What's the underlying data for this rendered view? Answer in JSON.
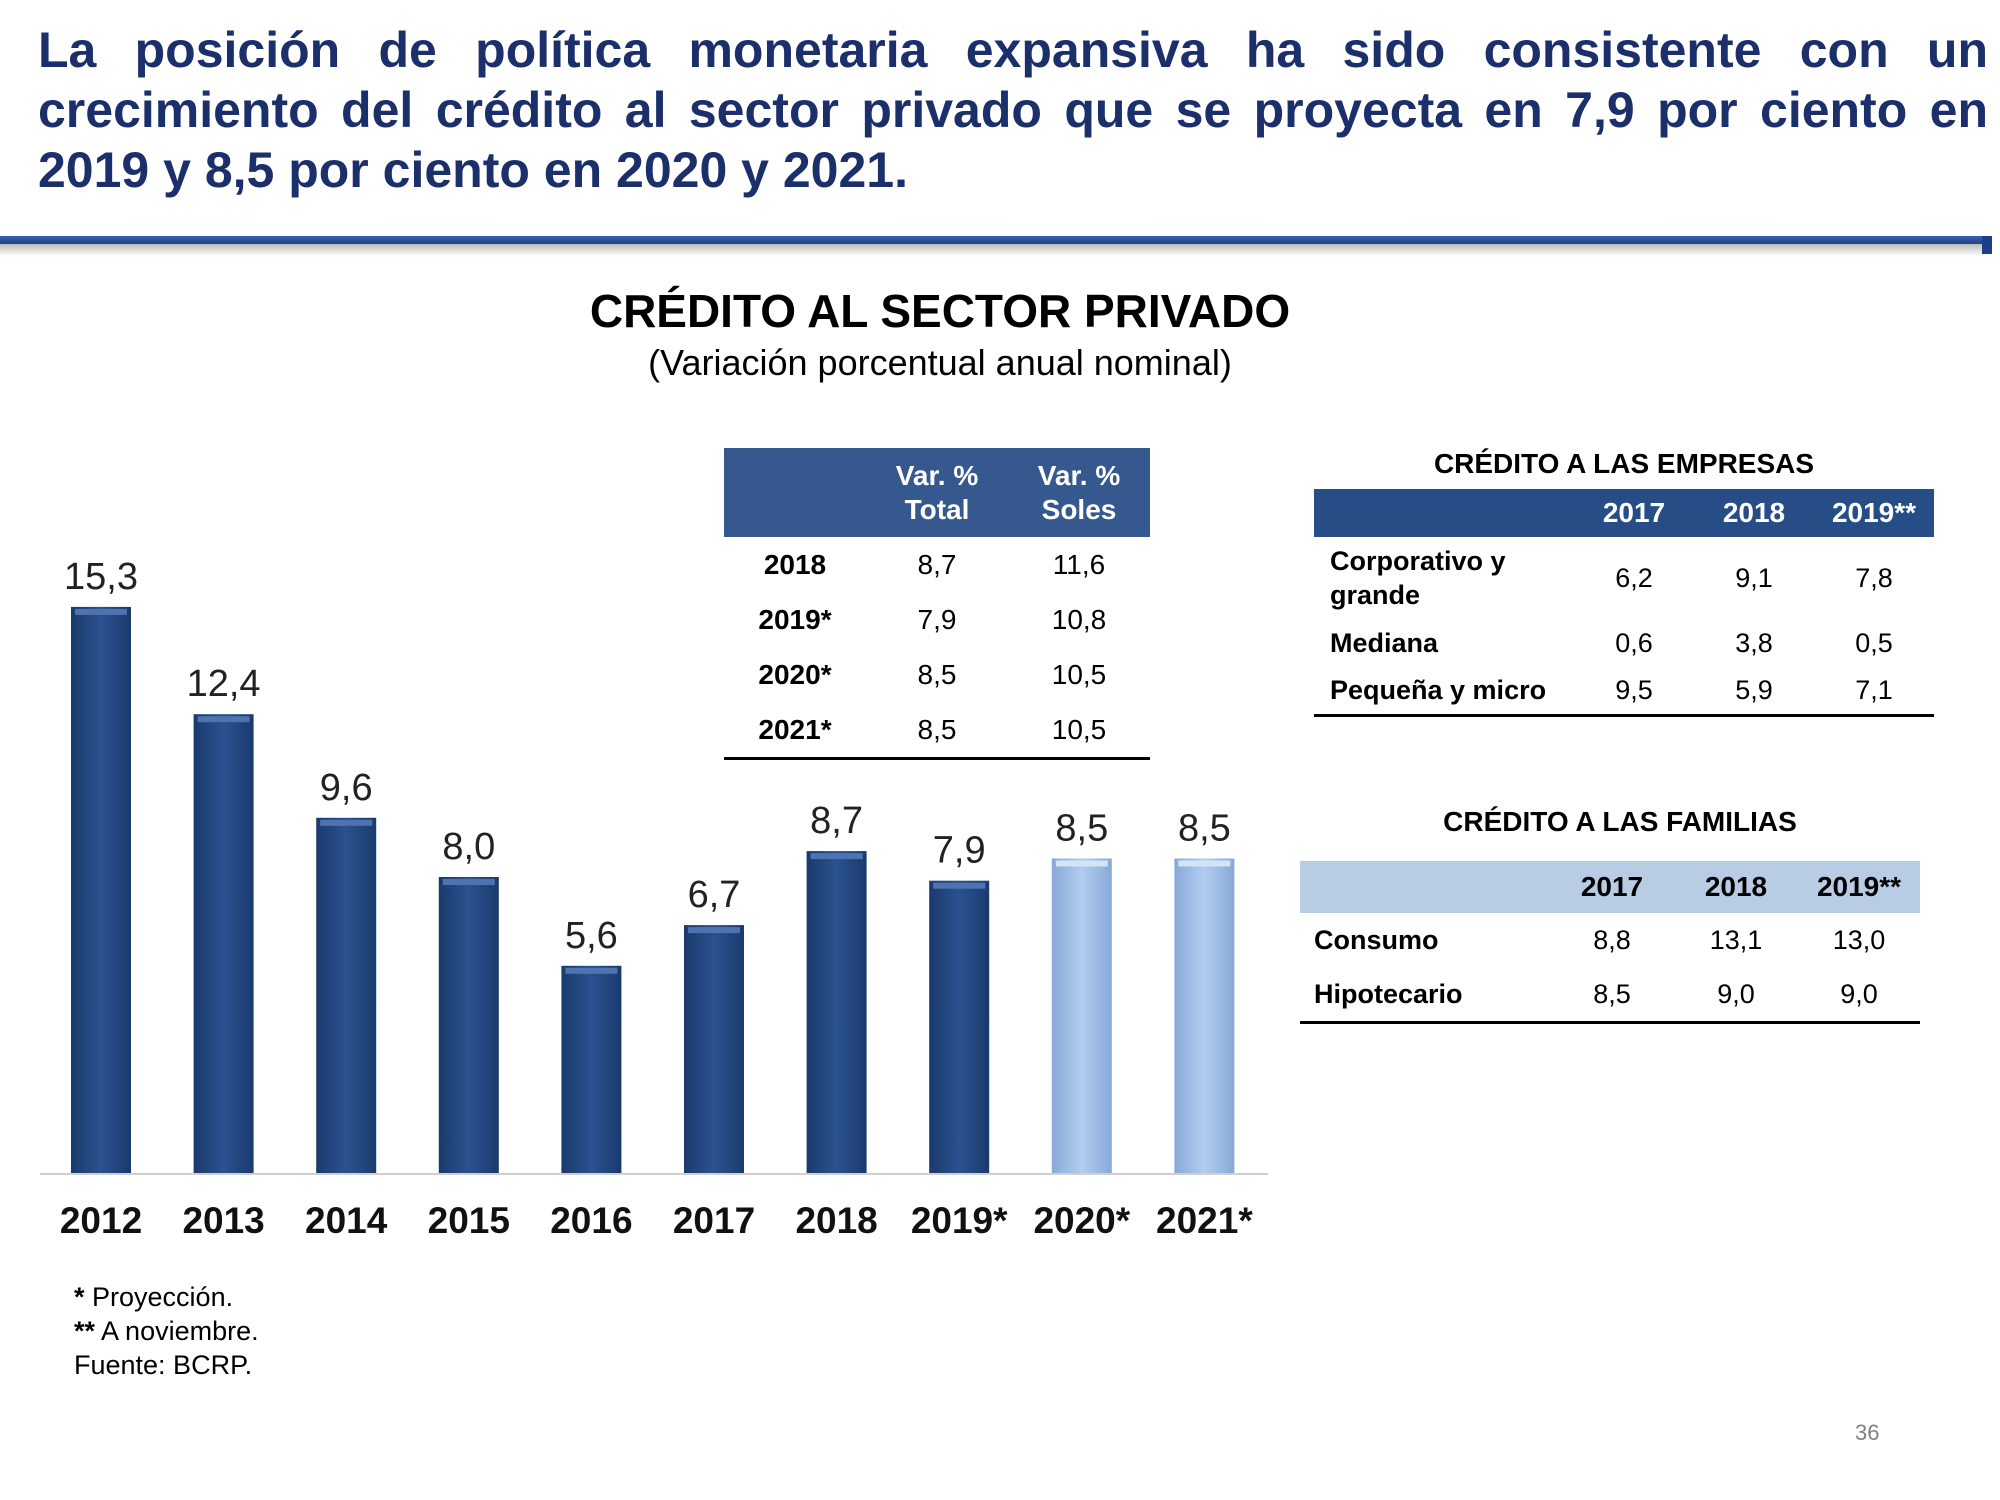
{
  "headline": "La posición de política monetaria expansiva ha sido consistente con un crecimiento del crédito al sector privado que se proyecta en 7,9 por ciento en 2019 y 8,5 por ciento en 2020 y 2021.",
  "colors": {
    "headline": "#1b2f6b",
    "bar_actual": "#264d86",
    "bar_projection": "#9dbde6",
    "table_header_dark": "#35598f",
    "table_header_light": "#b8cce4"
  },
  "chart_data": {
    "type": "bar",
    "title": "CRÉDITO AL SECTOR PRIVADO",
    "subtitle": "(Variación porcentual anual nominal)",
    "categories": [
      "2012",
      "2013",
      "2014",
      "2015",
      "2016",
      "2017",
      "2018",
      "2019*",
      "2020*",
      "2021*"
    ],
    "values": [
      15.3,
      12.4,
      9.6,
      8.0,
      5.6,
      6.7,
      8.7,
      7.9,
      8.5,
      8.5
    ],
    "value_labels": [
      "15,3",
      "12,4",
      "9,6",
      "8,0",
      "5,6",
      "6,7",
      "8,7",
      "7,9",
      "8,5",
      "8,5"
    ],
    "projection": [
      false,
      false,
      false,
      false,
      false,
      false,
      false,
      false,
      true,
      true
    ],
    "ylim": [
      0,
      16
    ],
    "grid": false,
    "legend": "none"
  },
  "table_var": {
    "headers": [
      "",
      "Var. %\nTotal",
      "Var. %\nSoles"
    ],
    "rows": [
      [
        "2018",
        "8,7",
        "11,6"
      ],
      [
        "2019*",
        "7,9",
        "10,8"
      ],
      [
        "2020*",
        "8,5",
        "10,5"
      ],
      [
        "2021*",
        "8,5",
        "10,5"
      ]
    ]
  },
  "empresas": {
    "title": "CRÉDITO A LAS EMPRESAS",
    "headers": [
      "",
      "2017",
      "2018",
      "2019**"
    ],
    "rows": [
      [
        "Corporativo y grande",
        "6,2",
        "9,1",
        "7,8"
      ],
      [
        "Mediana",
        "0,6",
        "3,8",
        "0,5"
      ],
      [
        "Pequeña y micro",
        "9,5",
        "5,9",
        "7,1"
      ]
    ]
  },
  "familias": {
    "title": "CRÉDITO A LAS FAMILIAS",
    "headers": [
      "",
      "2017",
      "2018",
      "2019**"
    ],
    "rows": [
      [
        "Consumo",
        "8,8",
        "13,1",
        "13,0"
      ],
      [
        "Hipotecario",
        "8,5",
        "9,0",
        "9,0"
      ]
    ]
  },
  "notes": {
    "n1_mark": "*",
    "n1_text": " Proyección.",
    "n2_mark": "**",
    "n2_text": " A noviembre.",
    "source": "Fuente: BCRP."
  },
  "page_number": "36"
}
